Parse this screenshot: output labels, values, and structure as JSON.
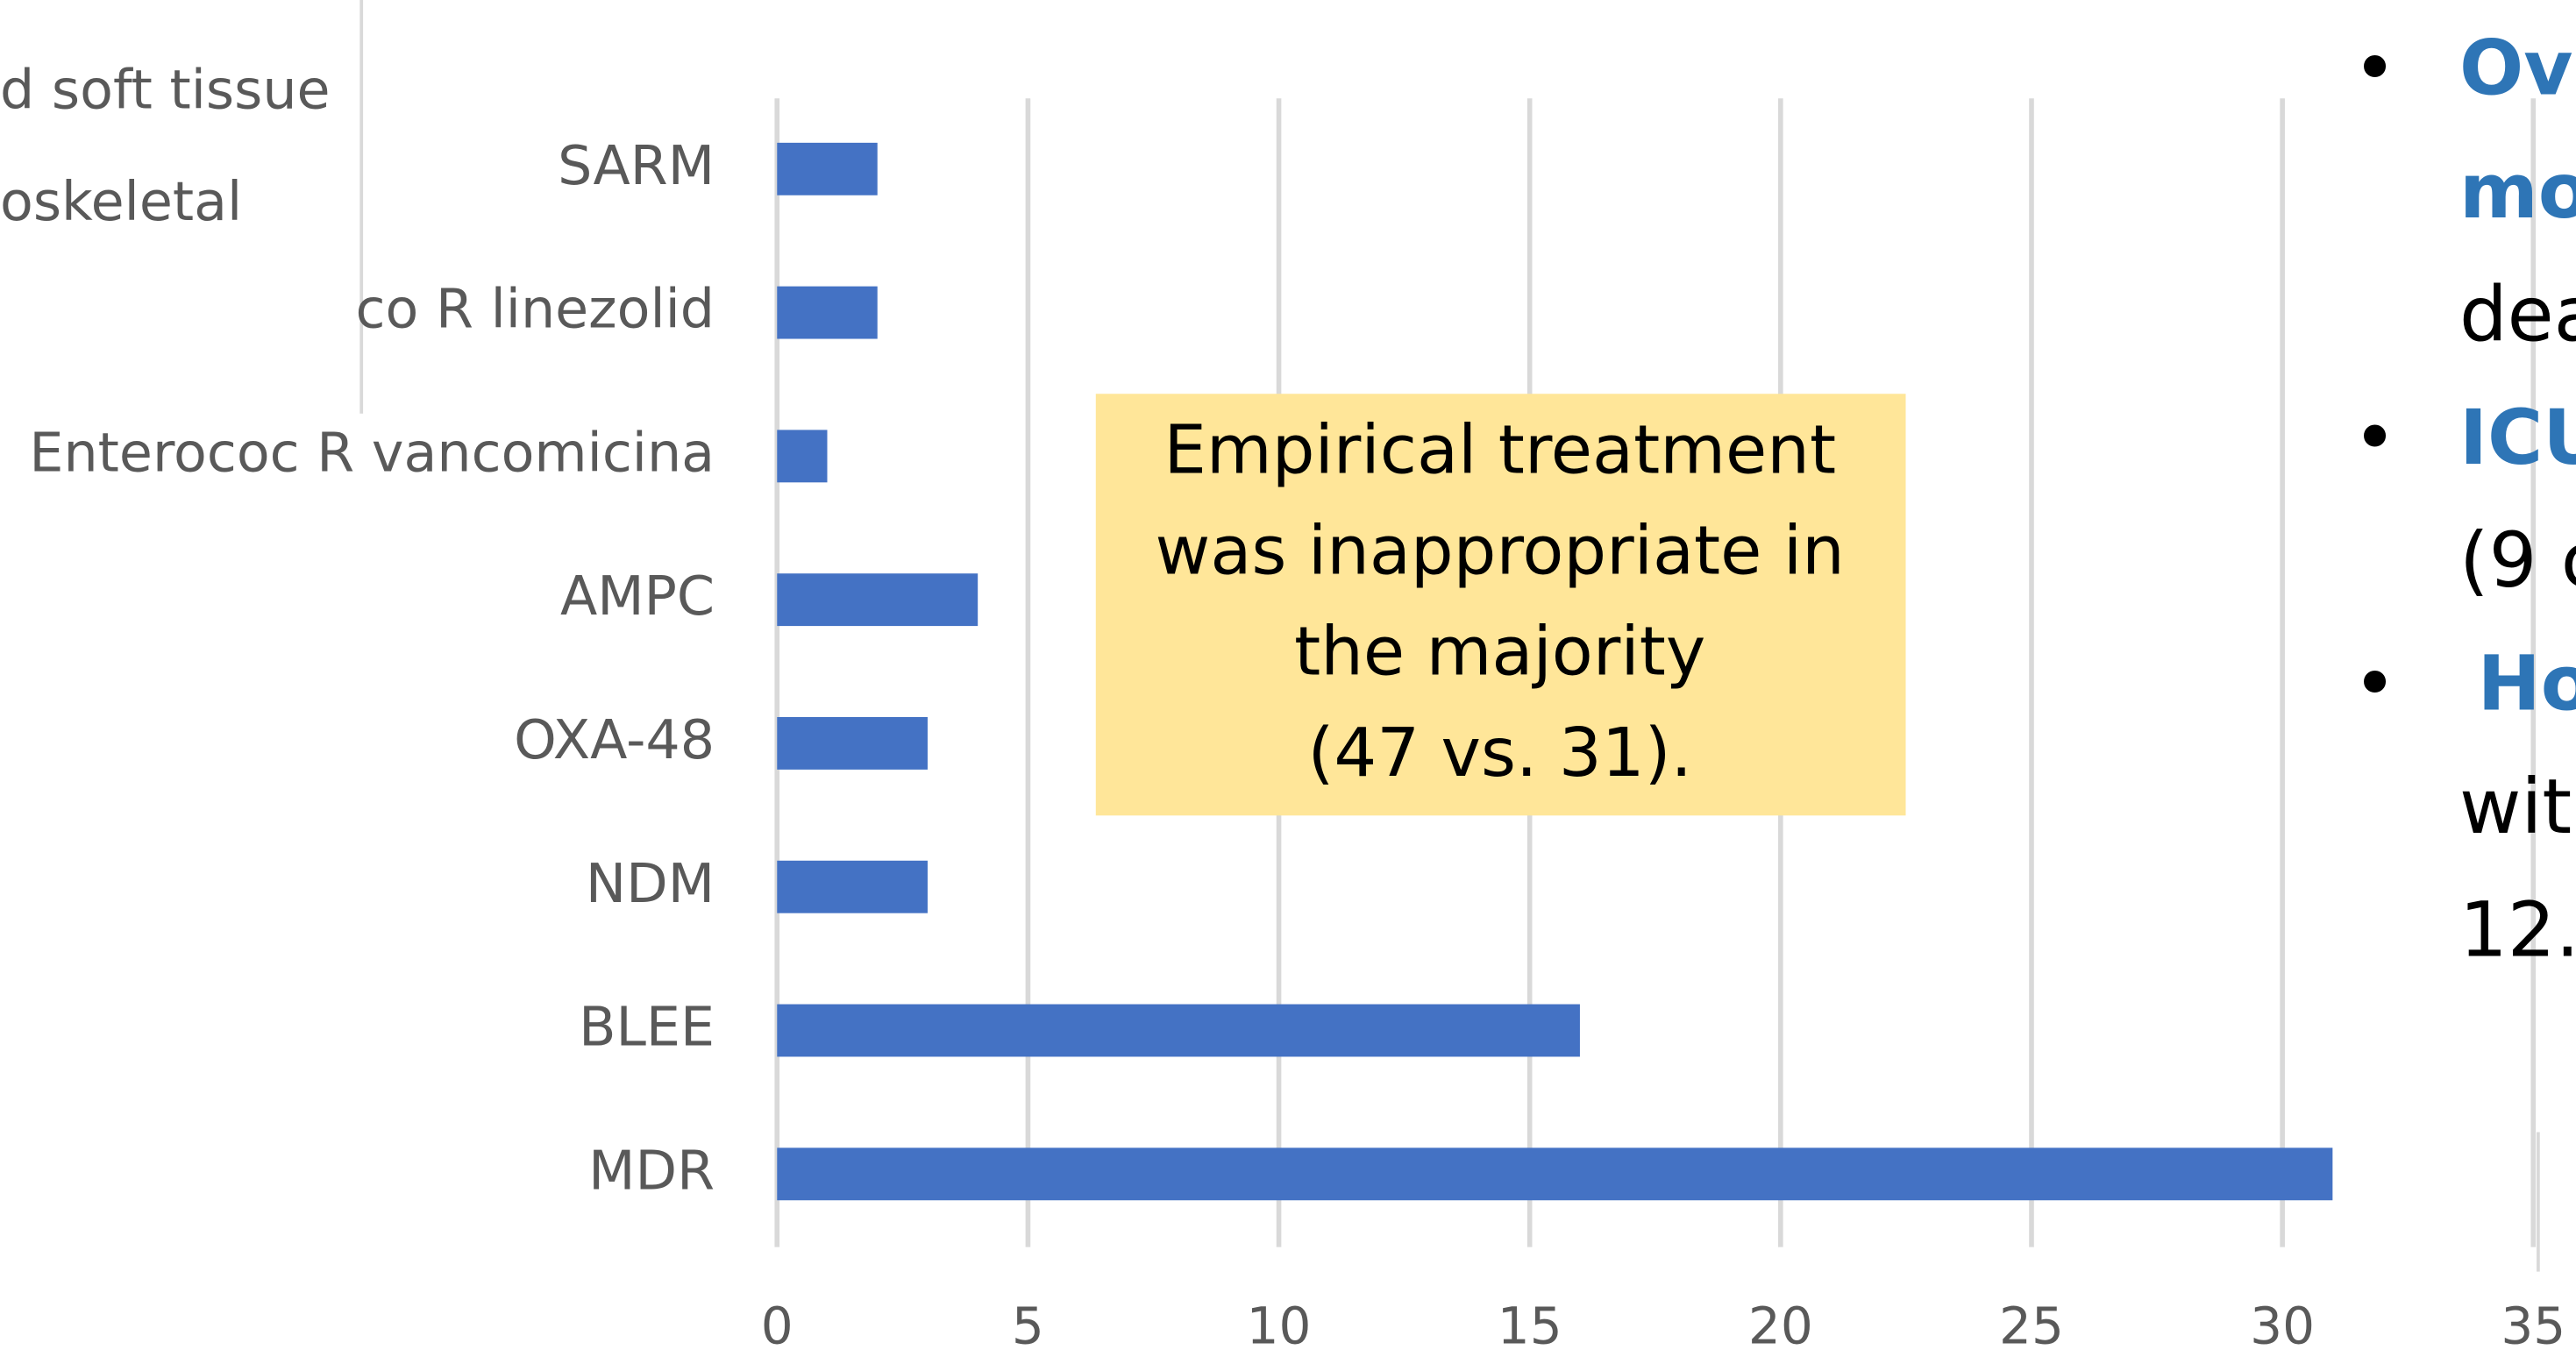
{
  "chart_data": {
    "type": "bar",
    "orientation": "horizontal",
    "categories": [
      "SARM",
      "co R linezolid",
      "Enterococ R vancomicina",
      "AMPC",
      "OXA-48",
      "NDM",
      "BLEE",
      "MDR"
    ],
    "values": [
      2,
      2,
      1,
      4,
      3,
      3,
      16,
      31
    ],
    "color": "#4472c4",
    "xlim": [
      0,
      35
    ],
    "xticks": [
      0,
      5,
      10,
      15,
      20,
      25,
      30,
      35
    ],
    "grid": true,
    "annotation": [
      "Empirical treatment",
      "was inappropriate in",
      "the majority",
      "(47 vs. 31)."
    ]
  },
  "left_text": [
    "d soft tissue",
    "oskeletal"
  ],
  "right_text": [
    {
      "bullet": "•",
      "text": "Ov",
      "color": "#2e75b6",
      "bold": true
    },
    {
      "text": "mo",
      "color": "#2e75b6",
      "bold": true
    },
    {
      "text": "dea",
      "color": "#000000",
      "bold": false
    },
    {
      "bullet": "•",
      "text": "ICU",
      "color": "#2e75b6",
      "bold": true
    },
    {
      "text": "(9 c",
      "color": "#000000",
      "bold": false
    },
    {
      "bullet": "•",
      "text": "Ho",
      "color": "#2e75b6",
      "bold": true
    },
    {
      "text": "wit",
      "color": "#000000",
      "bold": false
    },
    {
      "text": "12.",
      "color": "#000000",
      "bold": false
    }
  ]
}
